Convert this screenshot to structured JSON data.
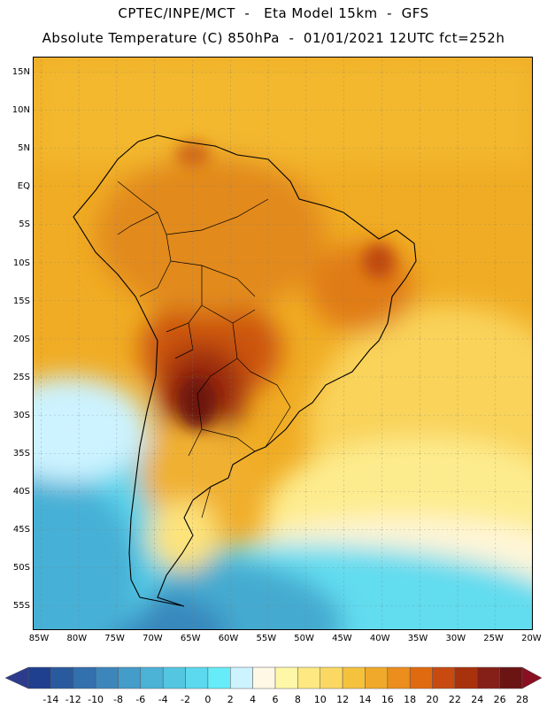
{
  "header": {
    "line1": "CPTEC/INPE/MCT  -   Eta Model 15km  -  GFS",
    "line2": "Absolute Temperature (C) 850hPa  -  01/01/2021 12UTC fct=252h"
  },
  "map": {
    "region": "South America",
    "lat_labels": [
      "15N",
      "10N",
      "5N",
      "EQ",
      "5S",
      "10S",
      "15S",
      "20S",
      "25S",
      "30S",
      "35S",
      "40S",
      "45S",
      "50S",
      "55S"
    ],
    "lon_labels": [
      "85W",
      "80W",
      "75W",
      "70W",
      "65W",
      "60W",
      "55W",
      "50W",
      "45W",
      "40W",
      "35W",
      "30W",
      "25W",
      "20W"
    ]
  },
  "colorbar": {
    "labels": [
      "-14",
      "-12",
      "-10",
      "-8",
      "-6",
      "-4",
      "-2",
      "0",
      "2",
      "4",
      "6",
      "8",
      "10",
      "12",
      "14",
      "16",
      "18",
      "20",
      "22",
      "24",
      "26",
      "28"
    ],
    "colors": [
      "#1f3f8f",
      "#2a5a9e",
      "#3370ae",
      "#3c86bc",
      "#449cc9",
      "#4cb2d6",
      "#54c6e2",
      "#5cd9ee",
      "#66ecf8",
      "#ccf3ff",
      "#fff8e4",
      "#fff7a8",
      "#fde882",
      "#fad862",
      "#f5c23e",
      "#f0a92a",
      "#eb8e1e",
      "#e06a10",
      "#c84a10",
      "#a8320c",
      "#852018",
      "#6a1414"
    ],
    "under_color": "#2c3b8c",
    "over_color": "#8a0f20"
  }
}
